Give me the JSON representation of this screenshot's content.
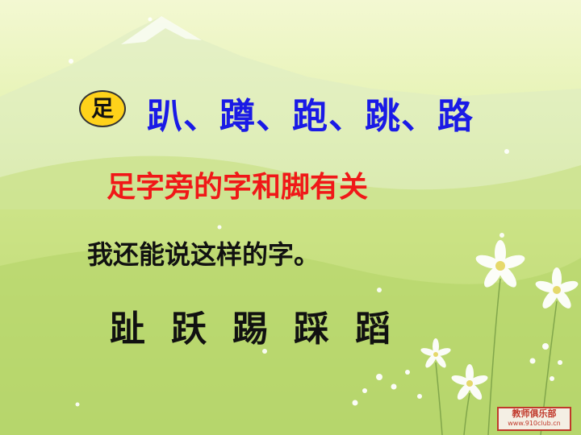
{
  "badge": {
    "radical": "足"
  },
  "lines": {
    "example_chars": "趴、蹲、跑、跳、路",
    "rule": "足字旁的字和脚有关",
    "prompt": "我还能说这样的字。",
    "more_chars": [
      "趾",
      "跃",
      "踢",
      "踩",
      "蹈"
    ]
  },
  "logo": {
    "name": "教师俱乐部",
    "url": "www.910club.cn"
  },
  "colors": {
    "blue": "#1a1ae6",
    "red": "#f01818",
    "yellow": "#ffd21a"
  }
}
